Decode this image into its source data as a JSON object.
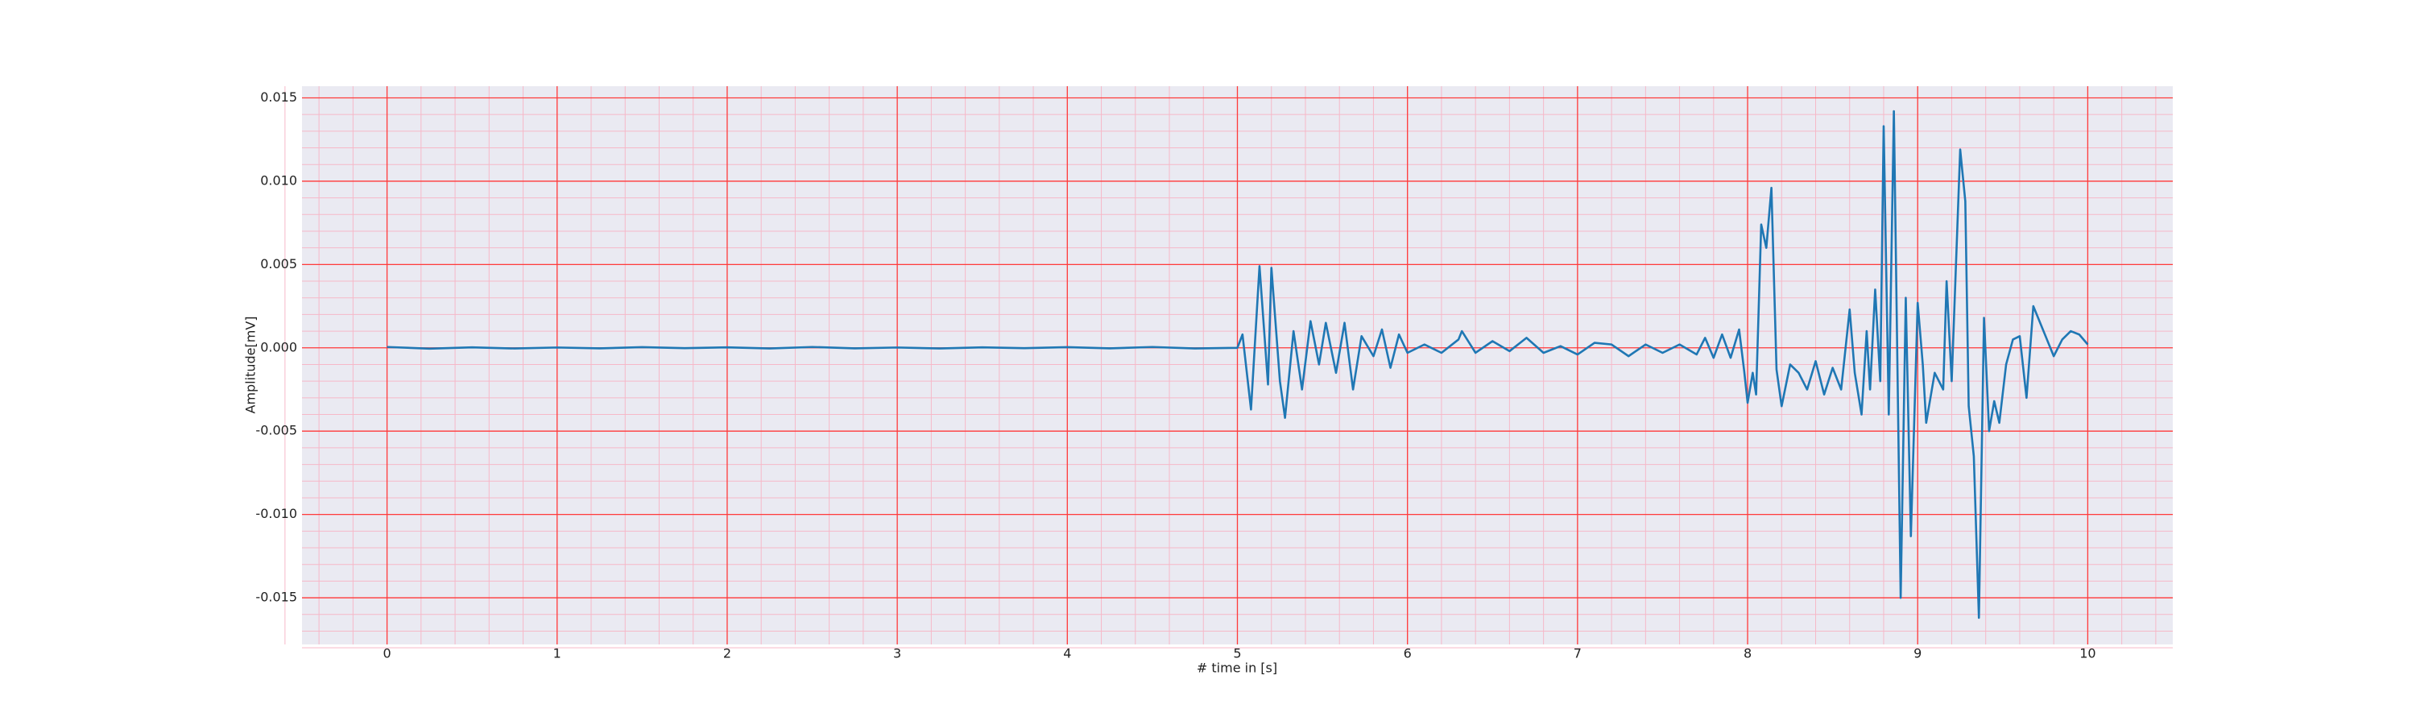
{
  "chart_data": {
    "type": "line",
    "x_label": "# time in [s]",
    "y_label": "Amplitude[mV]",
    "xlim": [
      -0.5,
      10.5
    ],
    "ylim": [
      -0.0178,
      0.0157
    ],
    "xticks": [
      0,
      1,
      2,
      3,
      4,
      5,
      6,
      7,
      8,
      9,
      10
    ],
    "yticks": [
      {
        "value": -0.015,
        "label": "-0.015"
      },
      {
        "value": -0.01,
        "label": "-0.010"
      },
      {
        "value": -0.005,
        "label": "-0.005"
      },
      {
        "value": 0,
        "label": "0.000"
      },
      {
        "value": 0.005,
        "label": "0.005"
      },
      {
        "value": 0.01,
        "label": "0.010"
      },
      {
        "value": 0.015,
        "label": "0.015"
      }
    ],
    "grid": true,
    "grid_color": "#ff3b3b",
    "minor_grid": true,
    "minor_grid_color": "#f6b8c8",
    "background": "#eaeaf2",
    "x": [
      0,
      0.25,
      0.5,
      0.75,
      1,
      1.25,
      1.5,
      1.75,
      2,
      2.25,
      2.5,
      2.75,
      3,
      3.25,
      3.5,
      3.75,
      4,
      4.25,
      4.5,
      4.75,
      5,
      5.03,
      5.08,
      5.13,
      5.18,
      5.2,
      5.25,
      5.28,
      5.33,
      5.38,
      5.43,
      5.48,
      5.52,
      5.58,
      5.63,
      5.68,
      5.73,
      5.8,
      5.85,
      5.9,
      5.95,
      6,
      6.1,
      6.2,
      6.3,
      6.32,
      6.4,
      6.5,
      6.6,
      6.7,
      6.8,
      6.9,
      7,
      7.1,
      7.2,
      7.3,
      7.4,
      7.5,
      7.6,
      7.7,
      7.75,
      7.8,
      7.85,
      7.9,
      7.95,
      7.98,
      8,
      8.03,
      8.05,
      8.08,
      8.11,
      8.14,
      8.17,
      8.2,
      8.25,
      8.3,
      8.35,
      8.4,
      8.45,
      8.5,
      8.55,
      8.6,
      8.63,
      8.67,
      8.7,
      8.72,
      8.75,
      8.78,
      8.8,
      8.83,
      8.86,
      8.9,
      8.93,
      8.96,
      9,
      9.03,
      9.05,
      9.1,
      9.15,
      9.17,
      9.2,
      9.25,
      9.28,
      9.3,
      9.33,
      9.36,
      9.39,
      9.42,
      9.45,
      9.48,
      9.52,
      9.56,
      9.6,
      9.64,
      9.68,
      9.72,
      9.76,
      9.8,
      9.85,
      9.9,
      9.95,
      10
    ],
    "series": [
      {
        "color": "#1f77b4",
        "values": [
          5e-05,
          -5e-05,
          3e-05,
          -4e-05,
          2e-05,
          -3e-05,
          4e-05,
          -2e-05,
          3e-05,
          -4e-05,
          5e-05,
          -3e-05,
          2e-05,
          -4e-05,
          3e-05,
          -2e-05,
          4e-05,
          -3e-05,
          5e-05,
          -4e-05,
          0,
          0.0008,
          -0.0037,
          0.0049,
          -0.0022,
          0.0048,
          -0.002,
          -0.0042,
          0.001,
          -0.0025,
          0.0016,
          -0.001,
          0.0015,
          -0.0015,
          0.0015,
          -0.0025,
          0.0007,
          -0.0005,
          0.0011,
          -0.0012,
          0.0008,
          -0.0003,
          0.0002,
          -0.0003,
          0.0005,
          0.001,
          -0.0003,
          0.0004,
          -0.0002,
          0.0006,
          -0.0003,
          0.0001,
          -0.0004,
          0.0003,
          0.0002,
          -0.0005,
          0.0002,
          -0.0003,
          0.0002,
          -0.0004,
          0.0006,
          -0.0006,
          0.0008,
          -0.0006,
          0.0011,
          -0.0014,
          -0.0033,
          -0.0015,
          -0.0028,
          0.0074,
          0.006,
          0.0096,
          -0.0013,
          -0.0035,
          -0.001,
          -0.0015,
          -0.0025,
          -0.0008,
          -0.0028,
          -0.0012,
          -0.0025,
          0.0023,
          -0.0015,
          -0.004,
          0.001,
          -0.0025,
          0.0035,
          -0.002,
          0.0133,
          -0.004,
          0.0142,
          -0.015,
          0.003,
          -0.0113,
          0.0027,
          -0.001,
          -0.0045,
          -0.0015,
          -0.0025,
          0.004,
          -0.002,
          0.0119,
          0.0088,
          -0.0035,
          -0.0065,
          -0.0162,
          0.0018,
          -0.005,
          -0.0032,
          -0.0045,
          -0.001,
          0.0005,
          0.0007,
          -0.003,
          0.0025,
          0.0015,
          0.0005,
          -0.0005,
          0.0005,
          0.001,
          0.0008,
          0.0002
        ]
      }
    ]
  }
}
